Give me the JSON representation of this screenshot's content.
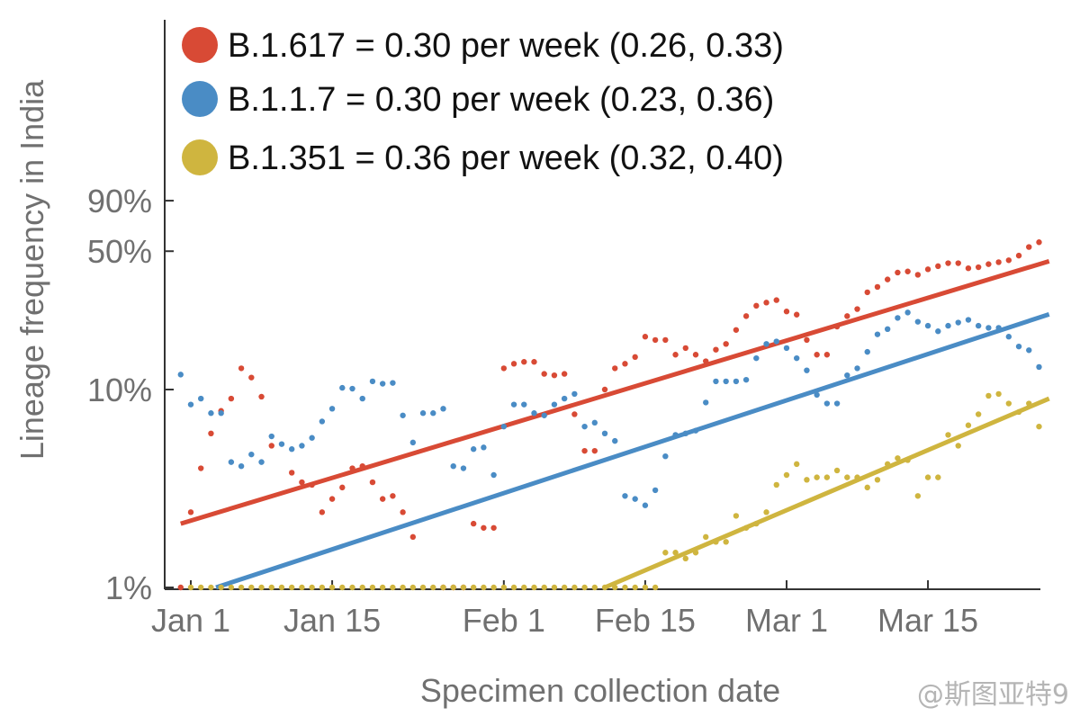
{
  "chart_data": {
    "type": "scatter",
    "xlabel": "Specimen collection date",
    "ylabel": "Lineage frequency in India",
    "yscale": "log",
    "ylim": [
      1,
      90
    ],
    "xlim": [
      -2,
      85
    ],
    "grid": false,
    "legend_position": "top-left",
    "y_ticks": [
      {
        "value": 1,
        "label": "1%"
      },
      {
        "value": 10,
        "label": "10%"
      },
      {
        "value": 50,
        "label": "50%"
      },
      {
        "value": 90,
        "label": "90%"
      }
    ],
    "x_ticks": [
      {
        "value": 0,
        "label": "Jan 1"
      },
      {
        "value": 14,
        "label": "Jan 15"
      },
      {
        "value": 31,
        "label": "Feb 1"
      },
      {
        "value": 45,
        "label": "Feb 15"
      },
      {
        "value": 59,
        "label": "Mar 1"
      },
      {
        "value": 73,
        "label": "Mar 15"
      }
    ],
    "series": [
      {
        "name": "B.1.617",
        "legend_label": "B.1.617 = 0.30 per week (0.26, 0.33)",
        "color": "#D84A35",
        "fit": [
          {
            "x": -1,
            "y": 2.1
          },
          {
            "x": 85,
            "y": 44.5
          }
        ],
        "points": [
          [
            -1,
            1.0
          ],
          [
            0,
            2.4
          ],
          [
            1,
            4.0
          ],
          [
            2,
            6.0
          ],
          [
            3,
            7.8
          ],
          [
            4,
            9.0
          ],
          [
            5,
            12.8
          ],
          [
            6,
            11.5
          ],
          [
            7,
            9.2
          ],
          [
            8,
            5.2
          ],
          [
            10,
            3.8
          ],
          [
            11,
            3.4
          ],
          [
            12,
            3.3
          ],
          [
            13,
            2.4
          ],
          [
            14,
            2.8
          ],
          [
            15,
            3.2
          ],
          [
            16,
            4.0
          ],
          [
            17,
            4.1
          ],
          [
            18,
            3.4
          ],
          [
            19,
            2.8
          ],
          [
            20,
            2.9
          ],
          [
            21,
            2.4
          ],
          [
            22,
            1.8
          ],
          [
            25,
            1.0
          ],
          [
            26,
            1.0
          ],
          [
            27,
            1.0
          ],
          [
            28,
            2.1
          ],
          [
            29,
            2.0
          ],
          [
            30,
            2.0
          ],
          [
            31,
            12.8
          ],
          [
            32,
            13.5
          ],
          [
            33,
            13.8
          ],
          [
            34,
            13.8
          ],
          [
            35,
            12.0
          ],
          [
            36,
            11.8
          ],
          [
            37,
            12.0
          ],
          [
            38,
            7.5
          ],
          [
            39,
            4.9
          ],
          [
            40,
            4.9
          ],
          [
            41,
            10.0
          ],
          [
            42,
            12.8
          ],
          [
            43,
            13.5
          ],
          [
            44,
            14.6
          ],
          [
            45,
            18.5
          ],
          [
            46,
            17.8
          ],
          [
            47,
            17.8
          ],
          [
            48,
            15.0
          ],
          [
            49,
            16.2
          ],
          [
            50,
            15.0
          ],
          [
            51,
            13.9
          ],
          [
            52,
            15.9
          ],
          [
            53,
            17.0
          ],
          [
            54,
            20.0
          ],
          [
            55,
            23.5
          ],
          [
            56,
            26.5
          ],
          [
            57,
            27.5
          ],
          [
            58,
            28.3
          ],
          [
            59,
            24.8
          ],
          [
            60,
            23.9
          ],
          [
            61,
            17.8
          ],
          [
            62,
            15.0
          ],
          [
            63,
            15.0
          ],
          [
            64,
            20.8
          ],
          [
            65,
            23.5
          ],
          [
            66,
            25.5
          ],
          [
            67,
            31.0
          ],
          [
            68,
            33.0
          ],
          [
            69,
            36.0
          ],
          [
            70,
            39.0
          ],
          [
            71,
            39.5
          ],
          [
            72,
            38.0
          ],
          [
            73,
            40.5
          ],
          [
            74,
            42.0
          ],
          [
            75,
            43.5
          ],
          [
            76,
            43.5
          ],
          [
            77,
            41.0
          ],
          [
            78,
            41.5
          ],
          [
            79,
            43.0
          ],
          [
            80,
            44.0
          ],
          [
            81,
            45.0
          ],
          [
            82,
            47.5
          ],
          [
            83,
            52.5
          ],
          [
            84,
            55.5
          ]
        ]
      },
      {
        "name": "B.1.1.7",
        "legend_label": "B.1.1.7 = 0.30 per week (0.23, 0.36)",
        "color": "#4A8CC5",
        "fit": [
          {
            "x": 2.5,
            "y": 1.0
          },
          {
            "x": 85,
            "y": 24.0
          }
        ],
        "points": [
          [
            -1,
            11.9
          ],
          [
            0,
            8.4
          ],
          [
            1,
            9.0
          ],
          [
            2,
            7.6
          ],
          [
            3,
            7.6
          ],
          [
            4,
            4.3
          ],
          [
            5,
            4.1
          ],
          [
            6,
            4.7
          ],
          [
            7,
            4.3
          ],
          [
            8,
            5.8
          ],
          [
            9,
            5.3
          ],
          [
            10,
            5.0
          ],
          [
            11,
            5.2
          ],
          [
            12,
            5.7
          ],
          [
            13,
            6.9
          ],
          [
            14,
            8.0
          ],
          [
            15,
            10.2
          ],
          [
            16,
            10.1
          ],
          [
            17,
            9.0
          ],
          [
            18,
            11.0
          ],
          [
            19,
            10.7
          ],
          [
            20,
            10.8
          ],
          [
            21,
            7.4
          ],
          [
            22,
            5.4
          ],
          [
            23,
            7.6
          ],
          [
            24,
            7.6
          ],
          [
            25,
            8.0
          ],
          [
            26,
            4.1
          ],
          [
            27,
            4.0
          ],
          [
            28,
            5.0
          ],
          [
            29,
            5.1
          ],
          [
            30,
            3.7
          ],
          [
            31,
            6.5
          ],
          [
            32,
            8.4
          ],
          [
            33,
            8.4
          ],
          [
            34,
            7.6
          ],
          [
            35,
            7.4
          ],
          [
            36,
            8.4
          ],
          [
            37,
            9.0
          ],
          [
            38,
            9.5
          ],
          [
            39,
            6.5
          ],
          [
            40,
            6.8
          ],
          [
            41,
            6.0
          ],
          [
            42,
            5.5
          ],
          [
            43,
            2.9
          ],
          [
            44,
            2.8
          ],
          [
            45,
            2.6
          ],
          [
            46,
            3.1
          ],
          [
            47,
            4.6
          ],
          [
            48,
            5.9
          ],
          [
            49,
            6.0
          ],
          [
            50,
            6.2
          ],
          [
            51,
            8.6
          ],
          [
            52,
            11.0
          ],
          [
            53,
            11.0
          ],
          [
            54,
            11.0
          ],
          [
            55,
            11.2
          ],
          [
            56,
            14.4
          ],
          [
            57,
            17.0
          ],
          [
            58,
            17.5
          ],
          [
            59,
            16.2
          ],
          [
            60,
            14.4
          ],
          [
            61,
            12.5
          ],
          [
            62,
            9.4
          ],
          [
            63,
            8.5
          ],
          [
            64,
            8.5
          ],
          [
            65,
            11.8
          ],
          [
            66,
            12.8
          ],
          [
            67,
            15.5
          ],
          [
            68,
            19.0
          ],
          [
            69,
            20.2
          ],
          [
            70,
            23.0
          ],
          [
            71,
            24.5
          ],
          [
            72,
            22.0
          ],
          [
            73,
            21.0
          ],
          [
            74,
            19.7
          ],
          [
            75,
            21.0
          ],
          [
            76,
            21.8
          ],
          [
            77,
            22.5
          ],
          [
            78,
            21.0
          ],
          [
            79,
            20.5
          ],
          [
            80,
            20.5
          ],
          [
            81,
            18.5
          ],
          [
            82,
            16.5
          ],
          [
            83,
            15.8
          ],
          [
            84,
            13.0
          ]
        ]
      },
      {
        "name": "B.1.351",
        "legend_label": "B.1.351 = 0.36 per week (0.32, 0.40)",
        "color": "#CFB53F",
        "fit": [
          {
            "x": 41,
            "y": 1.0
          },
          {
            "x": 85,
            "y": 9.0
          }
        ],
        "points": [
          [
            0,
            1.0
          ],
          [
            1,
            1.0
          ],
          [
            2,
            1.0
          ],
          [
            3,
            1.0
          ],
          [
            4,
            1.0
          ],
          [
            5,
            1.0
          ],
          [
            6,
            1.0
          ],
          [
            7,
            1.0
          ],
          [
            8,
            1.0
          ],
          [
            9,
            1.0
          ],
          [
            10,
            1.0
          ],
          [
            11,
            1.0
          ],
          [
            12,
            1.0
          ],
          [
            13,
            1.0
          ],
          [
            14,
            1.0
          ],
          [
            15,
            1.0
          ],
          [
            16,
            1.0
          ],
          [
            17,
            1.0
          ],
          [
            18,
            1.0
          ],
          [
            19,
            1.0
          ],
          [
            20,
            1.0
          ],
          [
            21,
            1.0
          ],
          [
            22,
            1.0
          ],
          [
            23,
            1.0
          ],
          [
            24,
            1.0
          ],
          [
            25,
            1.0
          ],
          [
            26,
            1.0
          ],
          [
            27,
            1.0
          ],
          [
            28,
            1.0
          ],
          [
            29,
            1.0
          ],
          [
            30,
            1.0
          ],
          [
            31,
            1.0
          ],
          [
            32,
            1.0
          ],
          [
            33,
            1.0
          ],
          [
            34,
            1.0
          ],
          [
            35,
            1.0
          ],
          [
            36,
            1.0
          ],
          [
            37,
            1.0
          ],
          [
            38,
            1.0
          ],
          [
            39,
            1.0
          ],
          [
            40,
            1.0
          ],
          [
            41,
            1.0
          ],
          [
            42,
            1.0
          ],
          [
            43,
            1.0
          ],
          [
            44,
            1.0
          ],
          [
            45,
            1.0
          ],
          [
            46,
            1.0
          ],
          [
            47,
            1.5
          ],
          [
            48,
            1.5
          ],
          [
            49,
            1.4
          ],
          [
            50,
            1.5
          ],
          [
            51,
            1.8
          ],
          [
            52,
            1.7
          ],
          [
            53,
            1.7
          ],
          [
            54,
            2.3
          ],
          [
            55,
            2.0
          ],
          [
            56,
            2.1
          ],
          [
            57,
            2.4
          ],
          [
            58,
            3.3
          ],
          [
            59,
            3.7
          ],
          [
            60,
            4.2
          ],
          [
            61,
            3.5
          ],
          [
            62,
            3.6
          ],
          [
            63,
            3.6
          ],
          [
            64,
            3.9
          ],
          [
            65,
            3.6
          ],
          [
            66,
            3.6
          ],
          [
            67,
            3.2
          ],
          [
            68,
            3.5
          ],
          [
            69,
            4.2
          ],
          [
            70,
            4.5
          ],
          [
            71,
            4.4
          ],
          [
            72,
            2.9
          ],
          [
            73,
            3.6
          ],
          [
            74,
            3.6
          ],
          [
            75,
            5.9
          ],
          [
            76,
            5.2
          ],
          [
            77,
            6.6
          ],
          [
            78,
            7.5
          ],
          [
            79,
            9.3
          ],
          [
            80,
            9.5
          ],
          [
            81,
            8.5
          ],
          [
            82,
            7.7
          ],
          [
            83,
            8.5
          ],
          [
            84,
            6.5
          ]
        ]
      }
    ]
  },
  "watermark": "@斯图亚特9"
}
